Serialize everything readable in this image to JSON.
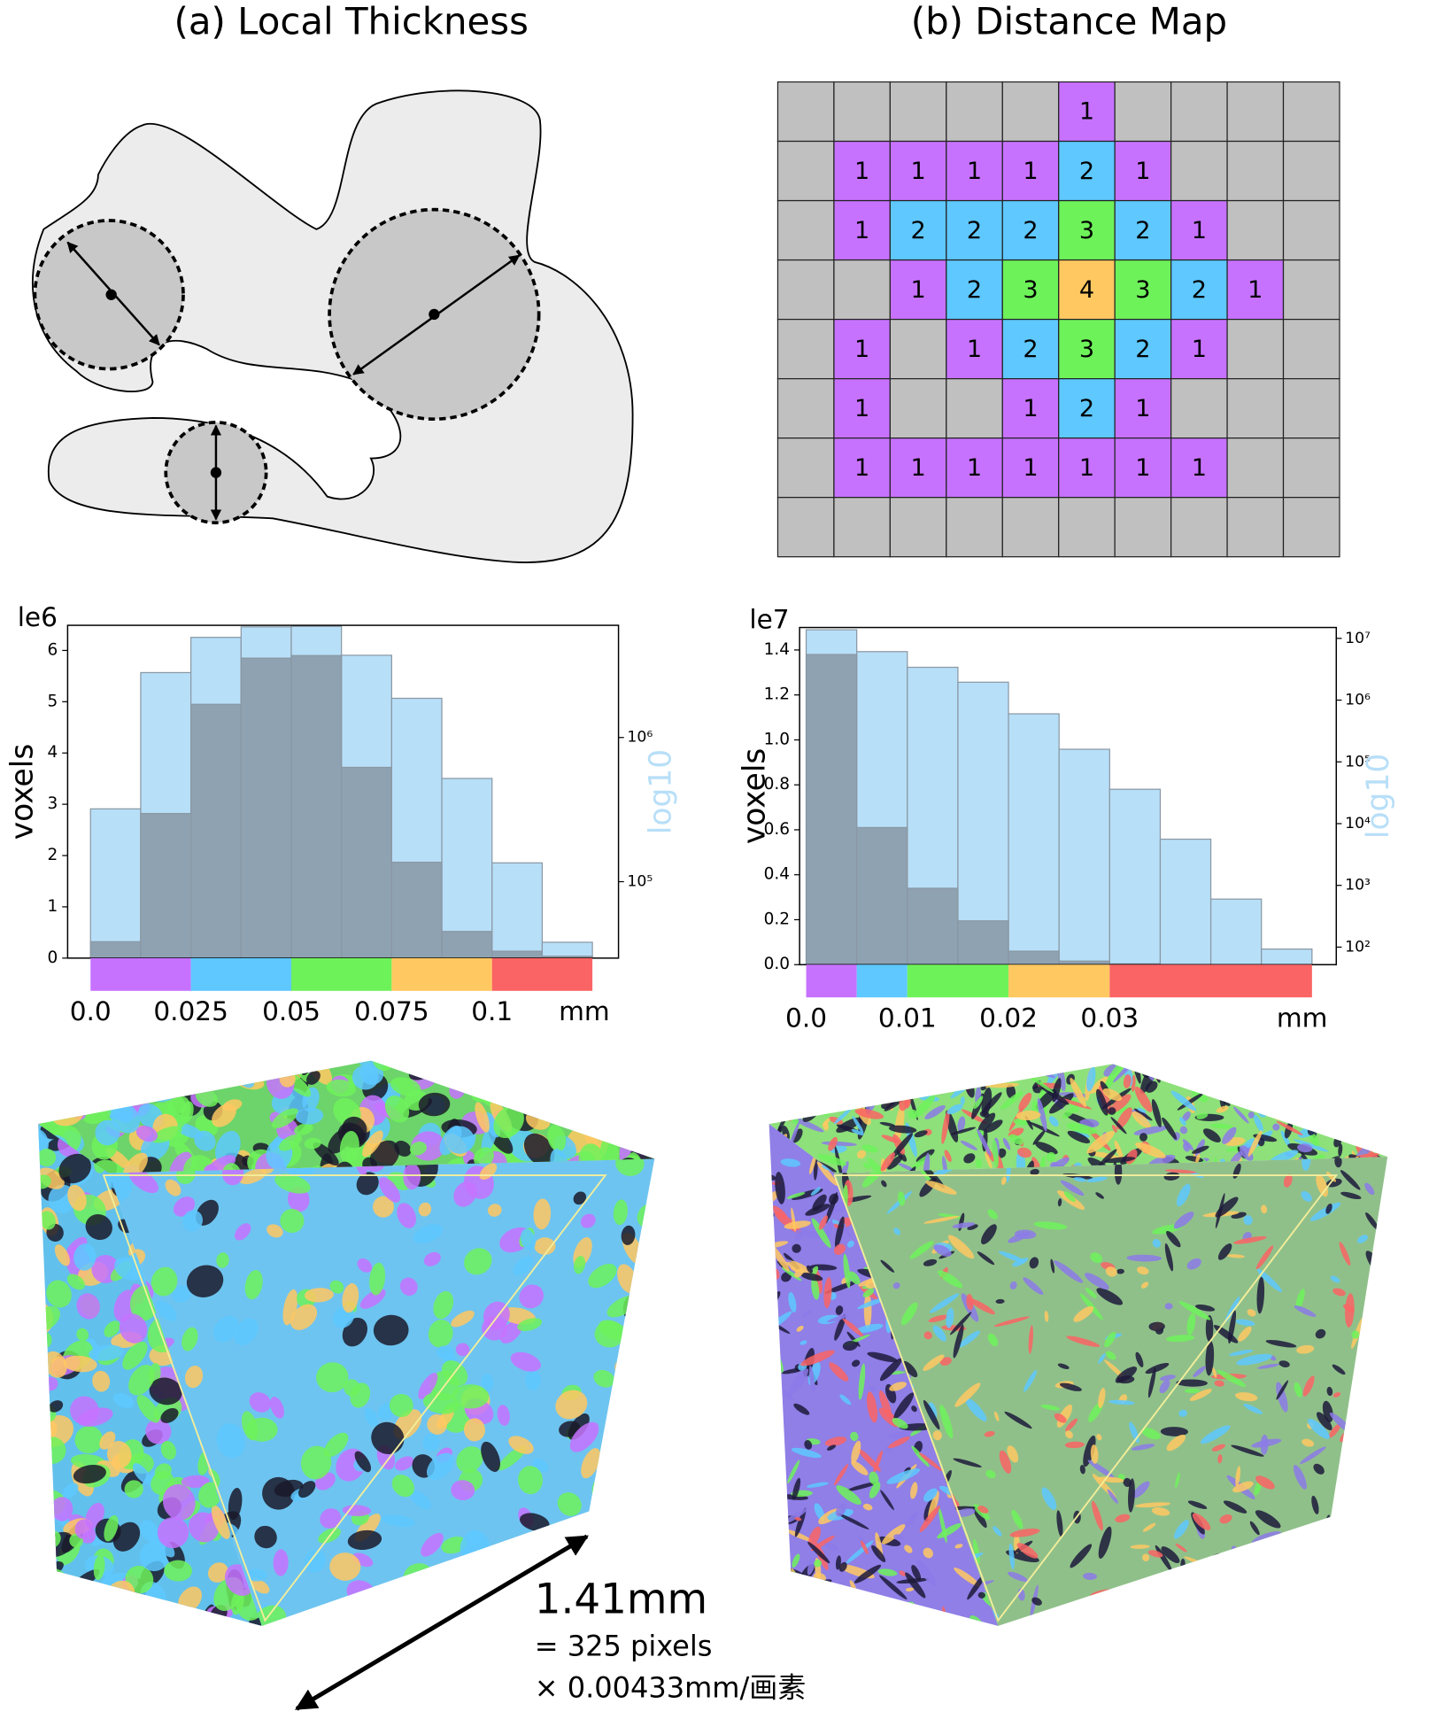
{
  "panels": [
    {
      "title": "(a) Local Thickness"
    },
    {
      "title": "(b) Distance Map"
    }
  ],
  "distance_map": {
    "value_colors": {
      "1": "#c772ff",
      "2": "#5ec8ff",
      "3": "#6ef25a",
      "4": "#ffc861"
    },
    "empty_color": "#c0c0c0",
    "rows": [
      [
        null,
        null,
        null,
        null,
        null,
        1,
        null,
        null,
        null,
        null
      ],
      [
        null,
        1,
        1,
        1,
        1,
        2,
        1,
        null,
        null,
        null
      ],
      [
        null,
        1,
        2,
        2,
        2,
        3,
        2,
        1,
        null,
        null
      ],
      [
        null,
        null,
        1,
        2,
        3,
        4,
        3,
        2,
        1,
        null
      ],
      [
        null,
        1,
        null,
        1,
        2,
        3,
        2,
        1,
        null,
        null
      ],
      [
        null,
        1,
        null,
        null,
        1,
        2,
        1,
        null,
        null,
        null
      ],
      [
        null,
        1,
        1,
        1,
        1,
        1,
        1,
        1,
        null,
        null
      ],
      [
        null,
        null,
        null,
        null,
        null,
        null,
        null,
        null,
        null,
        null
      ]
    ]
  },
  "chart_data": [
    {
      "type": "histogram",
      "offset_label": "le6",
      "y_label": "voxels",
      "y2_label": "log10",
      "x_label": "mm",
      "bins": [
        0,
        0.0125,
        0.025,
        0.0375,
        0.05,
        0.0625,
        0.075,
        0.0875,
        0.1,
        0.1125,
        0.125
      ],
      "series": [
        {
          "color": "#8798a6",
          "values": [
            0.32,
            2.82,
            4.95,
            5.85,
            5.9,
            3.72,
            1.87,
            0.52,
            0.135,
            0.038
          ]
        },
        {
          "color": "#b8dff8",
          "axis": "y2",
          "values": [
            320000,
            2820000,
            4950000,
            5850000,
            5900000,
            3720000,
            1870000,
            520000,
            135000,
            38000
          ]
        }
      ],
      "xlim": [
        -0.0057,
        0.1315
      ],
      "xticks": [
        {
          "value": 0,
          "label": "0.0"
        },
        0.025,
        0.05,
        0.075,
        0.1
      ],
      "ylim": [
        0,
        6.49
      ],
      "yticks": [
        0,
        1,
        2,
        3,
        4,
        5,
        6
      ],
      "y2_scale": "log",
      "y2lim": [
        29500,
        6000000
      ],
      "y2ticks": [
        {
          "value": 100000,
          "label": "10⁵"
        },
        {
          "value": 1000000,
          "label": "10⁶"
        }
      ],
      "color_bands": [
        {
          "from": 0,
          "to": 0.025,
          "color": "#c772ff"
        },
        {
          "from": 0.025,
          "to": 0.05,
          "color": "#5ec8ff"
        },
        {
          "from": 0.05,
          "to": 0.075,
          "color": "#6ef25a"
        },
        {
          "from": 0.075,
          "to": 0.1,
          "color": "#ffc861"
        },
        {
          "from": 0.1,
          "to": 0.125,
          "color": "#fa6464"
        }
      ]
    },
    {
      "type": "histogram",
      "offset_label": "le7",
      "y_label": "voxels",
      "y2_label": "log10",
      "x_label": "mm",
      "bins": [
        0,
        0.005,
        0.01,
        0.015,
        0.02,
        0.025,
        0.03,
        0.035,
        0.04,
        0.045,
        0.05
      ],
      "series": [
        {
          "color": "#8798a6",
          "values": [
            1.38,
            0.61,
            0.34,
            0.195,
            0.06,
            0.016,
            0.0036,
            0.00056,
            6e-05,
            9.3e-06
          ]
        },
        {
          "color": "#b8dff8",
          "axis": "y2",
          "values": [
            13800000,
            6100000,
            3400000,
            1950000,
            600000,
            160000,
            36000,
            5600,
            600,
            93
          ]
        }
      ],
      "xlim": [
        -0.00065,
        0.0524
      ],
      "xticks": [
        {
          "value": 0,
          "label": "0.0"
        },
        0.01,
        0.02,
        0.03
      ],
      "ylim": [
        0,
        1.5
      ],
      "yticks": [
        {
          "value": 0,
          "label": "0.0"
        },
        0.2,
        0.4,
        0.6,
        0.8,
        {
          "value": 1,
          "label": "1.0"
        },
        1.2,
        1.4
      ],
      "y2_scale": "log",
      "y2lim": [
        52,
        15000000
      ],
      "y2ticks": [
        {
          "value": 100,
          "label": "10²"
        },
        {
          "value": 1000,
          "label": "10³"
        },
        {
          "value": 10000,
          "label": "10⁴"
        },
        {
          "value": 100000,
          "label": "10⁵"
        },
        {
          "value": 1000000,
          "label": "10⁶"
        },
        {
          "value": 10000000,
          "label": "10⁷"
        }
      ],
      "color_bands": [
        {
          "from": 0,
          "to": 0.005,
          "color": "#c772ff"
        },
        {
          "from": 0.005,
          "to": 0.01,
          "color": "#5ec8ff"
        },
        {
          "from": 0.01,
          "to": 0.02,
          "color": "#6ef25a"
        },
        {
          "from": 0.02,
          "to": 0.03,
          "color": "#ffc861"
        },
        {
          "from": 0.03,
          "to": 0.05,
          "color": "#fa6464"
        }
      ]
    }
  ],
  "annotation": {
    "length": "1.41mm",
    "line_1": "= 325 pixels",
    "line_2": "× 0.00433mm/画素"
  }
}
